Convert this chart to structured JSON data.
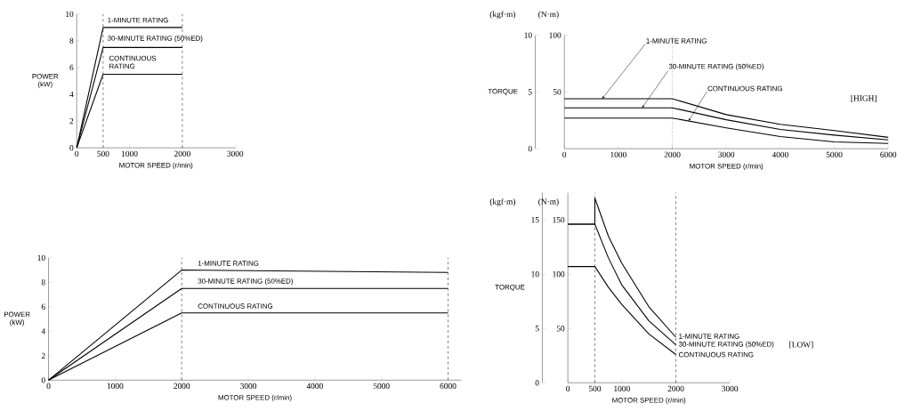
{
  "chart_data": [
    {
      "type": "line",
      "xlabel": "MOTOR SPEED (r/min)",
      "ylabel": "POWER (kW)",
      "xlim": [
        0,
        3000
      ],
      "ylim": [
        0,
        10
      ],
      "xticks": [
        0,
        500,
        1000,
        2000,
        3000
      ],
      "yticks": [
        0,
        2,
        4,
        6,
        8,
        10
      ],
      "series": [
        {
          "name": "1-MINUTE RATING",
          "color": "#000000",
          "x": [
            0,
            500,
            2000
          ],
          "values": [
            0,
            9,
            9
          ]
        },
        {
          "name": "30-MINUTE RATING (50%ED)",
          "color": "#000000",
          "x": [
            0,
            500,
            2000
          ],
          "values": [
            0,
            7.5,
            7.5
          ]
        },
        {
          "name": "CONTINUOUS RATING",
          "color": "#000000",
          "x": [
            0,
            500,
            2000
          ],
          "values": [
            0,
            5.5,
            5.5
          ]
        }
      ],
      "ref_lines": [
        {
          "axis": "x",
          "value": 500,
          "line_style": "dashed"
        },
        {
          "axis": "x",
          "value": 2000,
          "line_style": "dashed"
        }
      ]
    },
    {
      "type": "line",
      "xlabel": "MOTOR SPEED (r/min)",
      "ylabel": "POWER (kW)",
      "xlim": [
        0,
        6200
      ],
      "ylim": [
        0,
        10
      ],
      "xticks": [
        0,
        1000,
        2000,
        3000,
        4000,
        5000,
        6000
      ],
      "yticks": [
        0,
        2,
        4,
        6,
        8,
        10
      ],
      "series": [
        {
          "name": "1-MINUTE RATING",
          "color": "#000000",
          "x": [
            0,
            2000,
            6000
          ],
          "values": [
            0,
            9,
            8.8
          ]
        },
        {
          "name": "30-MINUTE RATING (50%ED)",
          "color": "#000000",
          "x": [
            0,
            2000,
            6000
          ],
          "values": [
            0,
            7.5,
            7.5
          ]
        },
        {
          "name": "CONTINUOUS RATING",
          "color": "#000000",
          "x": [
            0,
            2000,
            6000
          ],
          "values": [
            0,
            5.5,
            5.5
          ]
        }
      ],
      "ref_lines": [
        {
          "axis": "x",
          "value": 2000,
          "line_style": "dashed"
        },
        {
          "axis": "x",
          "value": 6000,
          "line_style": "dashed"
        }
      ]
    },
    {
      "type": "line",
      "xlabel": "MOTOR SPEED (r/min)",
      "ylabel": "TORQUE",
      "xlim": [
        0,
        6000
      ],
      "ylim": [
        0,
        10
      ],
      "yticks": [
        0,
        5,
        10
      ],
      "y2lim": [
        0,
        100
      ],
      "y2ticks": [
        50,
        100
      ],
      "xticks": [
        0,
        1000,
        2000,
        3000,
        4000,
        5000,
        6000
      ],
      "annotations": [
        "(kgf·m)",
        "(N·m)",
        "[HIGH]"
      ],
      "series": [
        {
          "name": "1-MINUTE RATING",
          "color": "#000000",
          "axis": "y2",
          "x": [
            0,
            2000,
            3000,
            4000,
            5000,
            6000
          ],
          "values": [
            44,
            44,
            30,
            21.5,
            16,
            10
          ]
        },
        {
          "name": "30-MINUTE RATING (50%ED)",
          "color": "#000000",
          "axis": "y2",
          "x": [
            0,
            2000,
            3000,
            4000,
            5000,
            6000
          ],
          "values": [
            36,
            36,
            25.5,
            17,
            12,
            7.7
          ]
        },
        {
          "name": "CONTINUOUS RATING",
          "color": "#000000",
          "axis": "y2",
          "x": [
            0,
            2000,
            3000,
            4000,
            5000,
            6000
          ],
          "values": [
            27,
            27,
            18.4,
            10.7,
            6,
            4.6
          ]
        }
      ],
      "ref_lines": [
        {
          "axis": "x",
          "value": 2000,
          "line_style": "dotted"
        }
      ]
    },
    {
      "type": "line",
      "xlabel": "MOTOR SPEED (r/min)",
      "ylabel": "TORQUE",
      "xlim": [
        0,
        3000
      ],
      "ylim": [
        0,
        17.5
      ],
      "yticks": [
        0,
        5,
        10,
        15
      ],
      "y2lim": [
        0,
        175
      ],
      "y2ticks": [
        50,
        100,
        150
      ],
      "xticks": [
        0,
        500,
        1000,
        2000,
        3000
      ],
      "annotations": [
        "(kgf·m)",
        "(N·m)",
        "[LOW]"
      ],
      "series": [
        {
          "name": "1-MINUTE RATING",
          "color": "#000000",
          "axis": "y2",
          "x": [
            0,
            500,
            500,
            750,
            1000,
            1500,
            2000
          ],
          "values": [
            146,
            146,
            170,
            135,
            110,
            70,
            42
          ]
        },
        {
          "name": "30-MINUTE RATING (50%ED)",
          "color": "#000000",
          "axis": "y2",
          "x": [
            0,
            500,
            750,
            1000,
            1500,
            2000
          ],
          "values": [
            146,
            146,
            115,
            90,
            57,
            35
          ]
        },
        {
          "name": "CONTINUOUS RATING",
          "color": "#000000",
          "axis": "y2",
          "x": [
            0,
            500,
            750,
            1000,
            1500,
            2000
          ],
          "values": [
            107,
            107,
            88,
            72,
            45,
            26
          ]
        }
      ],
      "ref_lines": [
        {
          "axis": "x",
          "value": 500,
          "line_style": "dashed"
        },
        {
          "axis": "x",
          "value": 2000,
          "line_style": "dashed"
        }
      ]
    }
  ]
}
